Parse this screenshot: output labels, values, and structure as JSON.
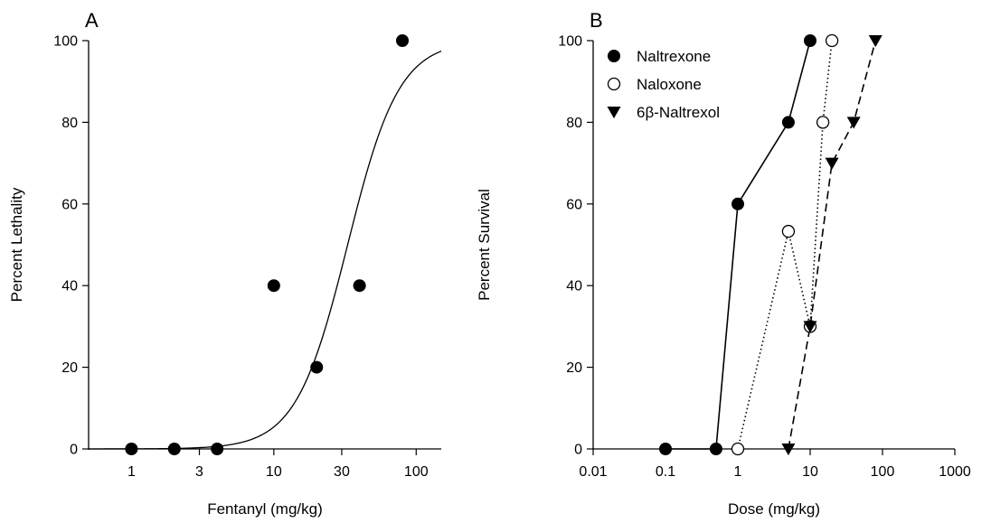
{
  "chart_data": [
    {
      "type": "scatter",
      "panel_label": "A",
      "xlabel": "Fentanyl (mg/kg)",
      "ylabel": "Percent Lethality",
      "x_scale": "log",
      "xlim": [
        0.5,
        150
      ],
      "ylim": [
        0,
        100
      ],
      "xticks": [
        1,
        3,
        10,
        30,
        100
      ],
      "xtick_labels": [
        "1",
        "3",
        "10",
        "30",
        "100"
      ],
      "yticks": [
        0,
        20,
        40,
        60,
        80,
        100
      ],
      "ytick_labels": [
        "0",
        "20",
        "40",
        "60",
        "80",
        "100"
      ],
      "grid": false,
      "series": [
        {
          "marker": "filled-circle",
          "x": [
            1,
            2,
            4,
            10,
            20,
            40,
            80
          ],
          "y": [
            0,
            0,
            0,
            40,
            20,
            40,
            100
          ]
        }
      ],
      "fit_curve": {
        "model": "logistic",
        "ed50": 33,
        "hill": 2.4,
        "max": 100
      }
    },
    {
      "type": "line",
      "panel_label": "B",
      "xlabel": "Dose (mg/kg)",
      "ylabel": "Percent Survival",
      "x_scale": "log",
      "xlim": [
        0.01,
        1000
      ],
      "ylim": [
        0,
        100
      ],
      "xticks": [
        0.01,
        0.1,
        1,
        10,
        100,
        1000
      ],
      "xtick_labels": [
        "0.01",
        "0.1",
        "1",
        "10",
        "100",
        "1000"
      ],
      "yticks": [
        0,
        20,
        40,
        60,
        80,
        100
      ],
      "ytick_labels": [
        "0",
        "20",
        "40",
        "60",
        "80",
        "100"
      ],
      "grid": false,
      "legend_position": "top-left",
      "series": [
        {
          "name": "Naltrexone",
          "marker": "filled-circle",
          "line": "solid",
          "x": [
            0.1,
            0.5,
            1,
            5,
            10
          ],
          "y": [
            0,
            0,
            60,
            80,
            100
          ]
        },
        {
          "name": "Naloxone",
          "marker": "open-circle",
          "line": "dotted",
          "x": [
            1,
            5,
            10,
            15,
            20
          ],
          "y": [
            0,
            53.3,
            30,
            80,
            100
          ]
        },
        {
          "name": "6β-Naltrexol",
          "marker": "filled-triangle-down",
          "line": "dashed",
          "x": [
            5,
            10,
            20,
            40,
            80
          ],
          "y": [
            0,
            30,
            70,
            80,
            100
          ]
        }
      ]
    }
  ]
}
